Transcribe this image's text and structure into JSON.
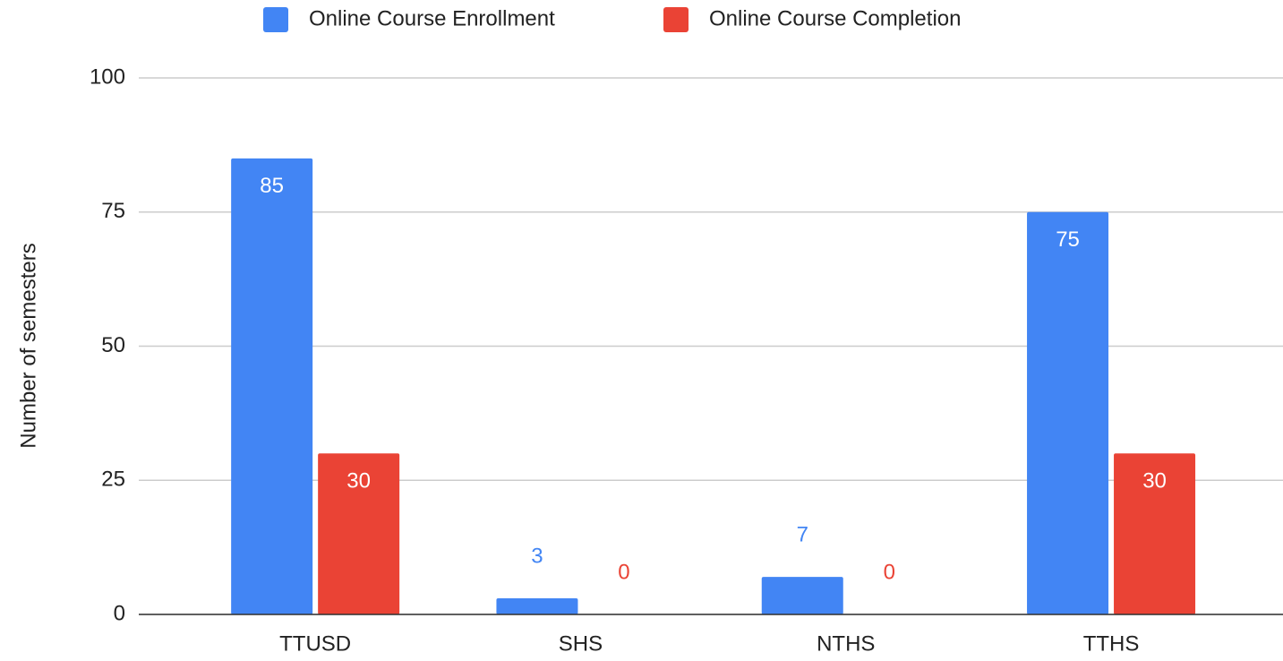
{
  "chart_data": {
    "type": "bar",
    "categories": [
      "TTUSD",
      "SHS",
      "NTHS",
      "TTHS"
    ],
    "series": [
      {
        "name": "Online Course Enrollment",
        "color": "#4285f4",
        "values": [
          85,
          3,
          7,
          75
        ]
      },
      {
        "name": "Online Course Completion",
        "color": "#ea4335",
        "values": [
          30,
          0,
          0,
          30
        ]
      }
    ],
    "y_label": "Number of semesters",
    "ylim": [
      0,
      100
    ],
    "yticks": [
      0,
      25,
      50,
      75,
      100
    ],
    "grid": true,
    "legend": "top"
  }
}
